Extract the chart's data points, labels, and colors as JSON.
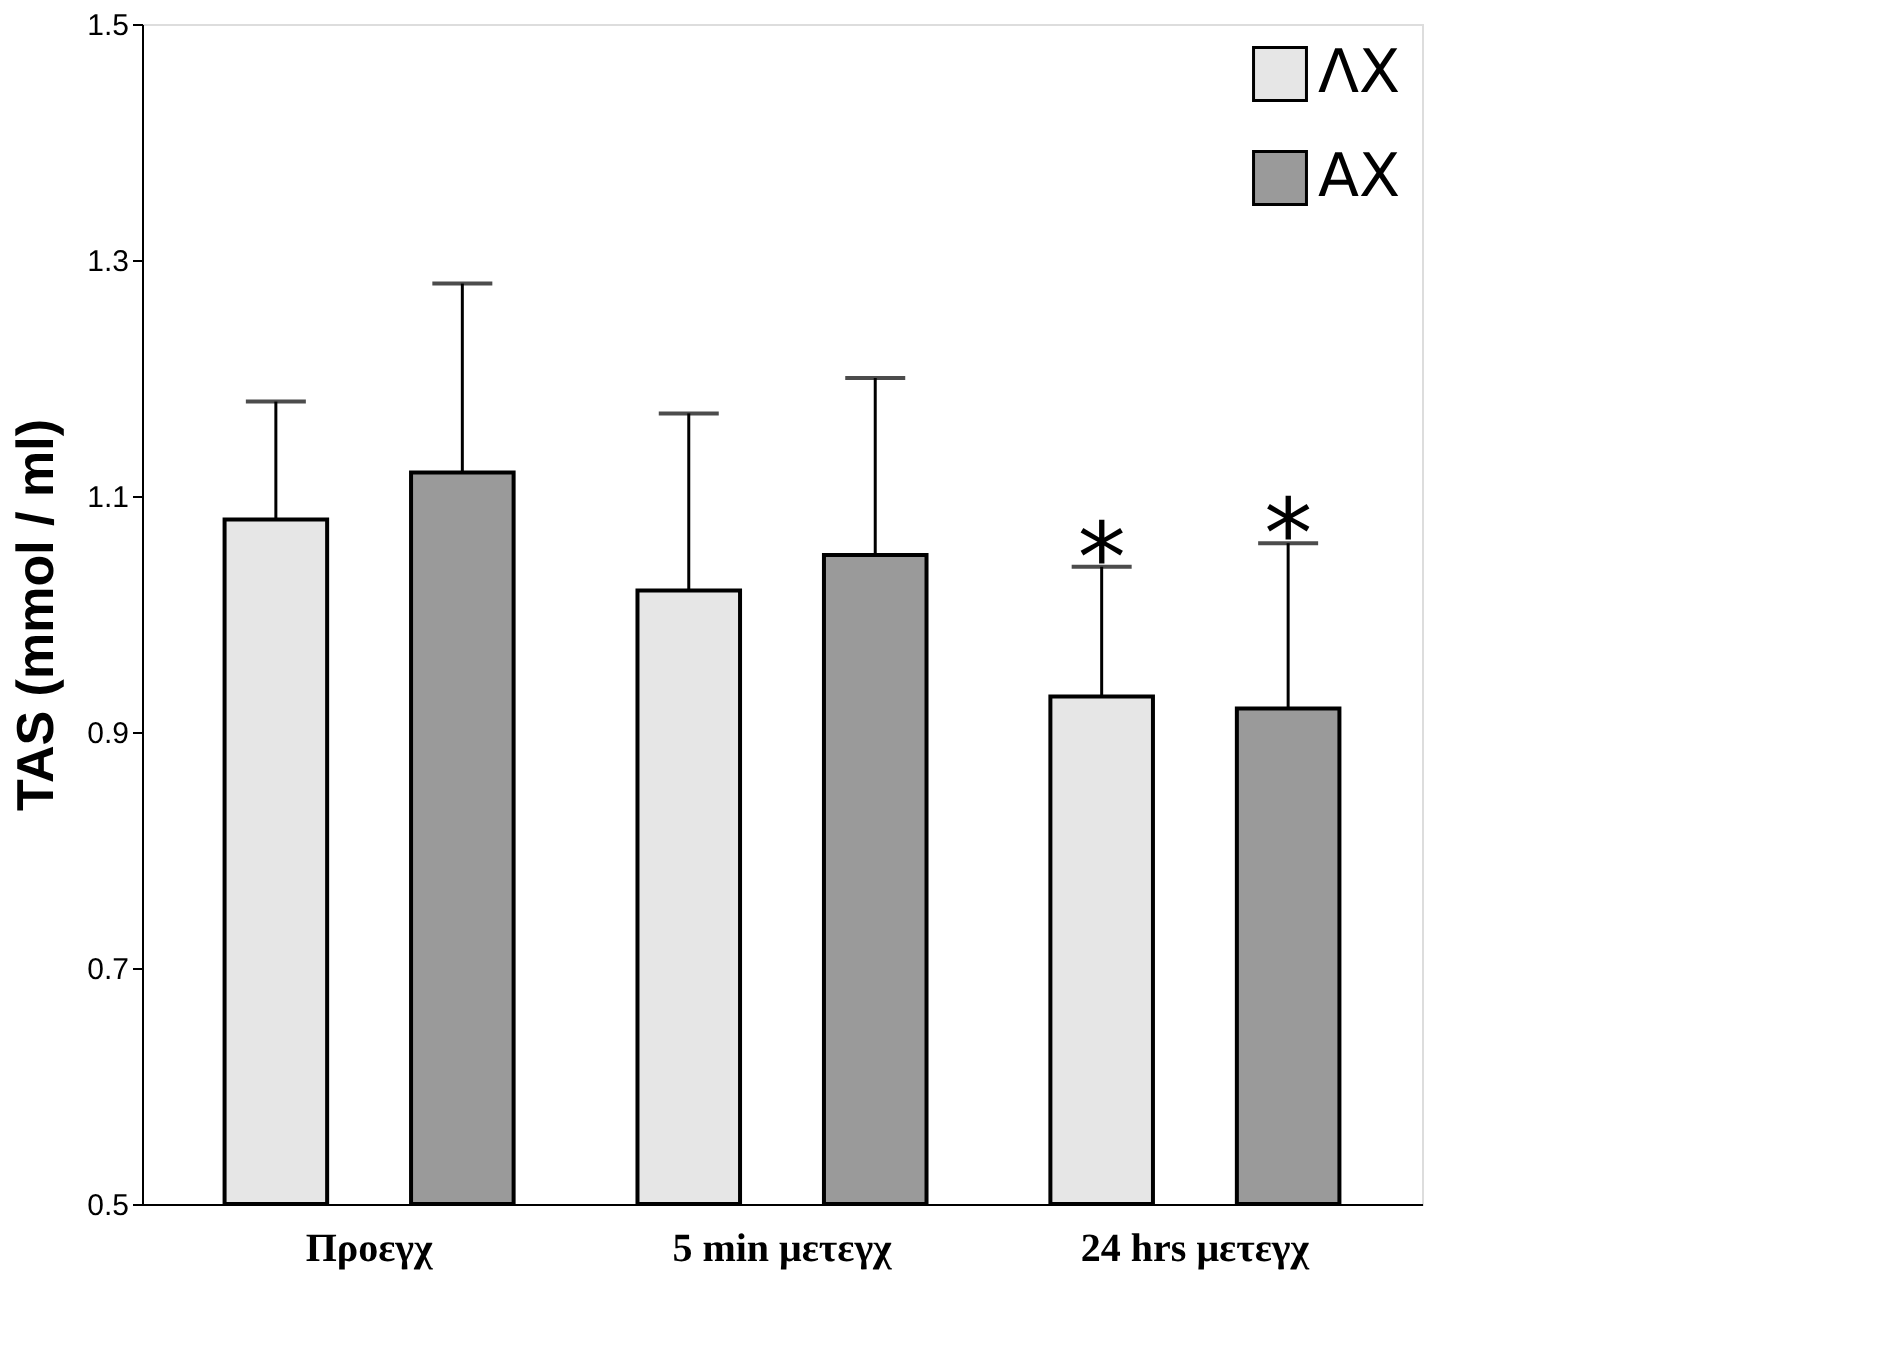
{
  "chart_data": {
    "type": "bar",
    "ylabel": "TAS (mmol / ml)",
    "categories": [
      "Προεγχ",
      "5 min μετεγχ",
      "24 hrs μετεγχ"
    ],
    "series": [
      {
        "name": "ΛΧ",
        "color": "#e6e6e6",
        "values": [
          1.08,
          1.02,
          0.93
        ],
        "errors": [
          [
            1.08,
            1.18
          ],
          [
            1.02,
            1.17
          ],
          [
            0.93,
            1.04
          ]
        ]
      },
      {
        "name": "ΑΧ",
        "color": "#9a9a9a",
        "values": [
          1.12,
          1.05,
          0.92
        ],
        "errors": [
          [
            1.12,
            1.28
          ],
          [
            1.05,
            1.2
          ],
          [
            0.92,
            1.06
          ]
        ]
      }
    ],
    "annotations": [
      "*",
      "*"
    ],
    "ylim": [
      0.5,
      1.5
    ],
    "yticks": [
      0.5,
      0.7,
      0.9,
      1.1,
      1.3,
      1.5
    ],
    "grid": false,
    "legend": "top right"
  }
}
